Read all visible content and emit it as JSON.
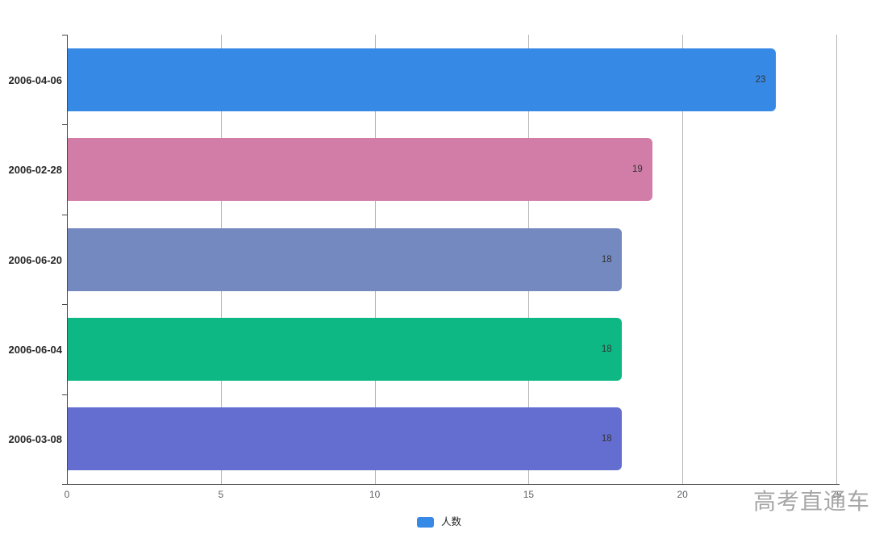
{
  "chart_data": {
    "type": "bar",
    "orientation": "horizontal",
    "title": "",
    "categories": [
      "2006-04-06",
      "2006-02-28",
      "2006-06-20",
      "2006-06-04",
      "2006-03-08"
    ],
    "series": [
      {
        "name": "人数",
        "values": [
          23,
          19,
          18,
          18,
          18
        ]
      }
    ],
    "bar_colors": [
      "#3789E6",
      "#D27CA8",
      "#7489BF",
      "#0EB884",
      "#646ED1"
    ],
    "xlim": [
      0,
      25
    ],
    "x_ticks": [
      0,
      5,
      10,
      15,
      20,
      25
    ],
    "grid": true,
    "value_labels_shown": true,
    "legend_position": "bottom-center",
    "axis_color": "#474747",
    "gridline_color": "#b5b5b5"
  },
  "legend": {
    "swatch_color": "#3789E6"
  },
  "watermark": {
    "text": "高考直通车",
    "color": "#A6A6A6"
  }
}
